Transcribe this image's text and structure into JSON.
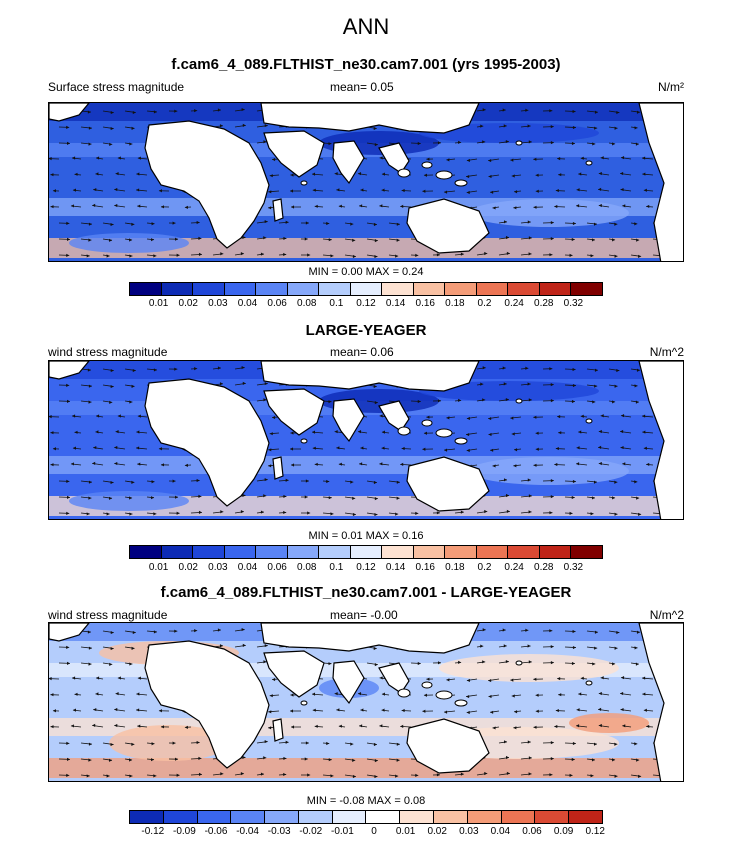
{
  "title": "ANN",
  "colors": {
    "ocean_base": "#2f5fe0",
    "land": "#ffffff",
    "coast": "#000000",
    "arrow": "#111111"
  },
  "colorbar_colors_abs": [
    "#000080",
    "#0d2bb5",
    "#1f46d8",
    "#3a66ee",
    "#5a84f5",
    "#86a8fa",
    "#b4cdfc",
    "#e5eefe",
    "#fde2d2",
    "#f9c1a3",
    "#f49c78",
    "#ec7554",
    "#da4a34",
    "#bf2418",
    "#800000"
  ],
  "colorbar_colors_diff": [
    "#0d2bb5",
    "#1f46d8",
    "#3a66ee",
    "#5a84f5",
    "#86a8fa",
    "#b4cdfc",
    "#e5eefe",
    "#ffffff",
    "#fde2d2",
    "#f9c1a3",
    "#f49c78",
    "#ec7554",
    "#da4a34",
    "#bf2418"
  ],
  "chart_data": [
    {
      "type": "heatmap",
      "title": "f.cam6_4_089.FLTHIST_ne30.cam7.001 (yrs 1995-2003)",
      "left_label": "Surface stress magnitude",
      "mean_label": "mean=   0.05",
      "units": "N/m²",
      "minmax": "MIN =   0.00 MAX =   0.24",
      "min": 0.0,
      "max": 0.24,
      "mean": 0.05,
      "levels": [
        "0.01",
        "0.02",
        "0.03",
        "0.04",
        "0.06",
        "0.08",
        "0.1",
        "0.12",
        "0.14",
        "0.16",
        "0.18",
        "0.2",
        "0.24",
        "0.28",
        "0.32"
      ],
      "field_fill": "#2f5fe0",
      "band_fills": [
        "#0d2bb5",
        "#5a84f5",
        "#86a8fa",
        "#f9c1a3"
      ]
    },
    {
      "type": "heatmap",
      "title": "LARGE-YEAGER",
      "left_label": "wind stress magnitude",
      "mean_label": "mean=   0.06",
      "units": "N/m^2",
      "minmax": "MIN =   0.01 MAX =   0.16",
      "min": 0.01,
      "max": 0.16,
      "mean": 0.06,
      "levels": [
        "0.01",
        "0.02",
        "0.03",
        "0.04",
        "0.06",
        "0.08",
        "0.1",
        "0.12",
        "0.14",
        "0.16",
        "0.18",
        "0.2",
        "0.24",
        "0.28",
        "0.32"
      ],
      "field_fill": "#3a66ee",
      "band_fills": [
        "#1f46d8",
        "#5a84f5",
        "#86a8fa",
        "#fde2d2"
      ]
    },
    {
      "type": "heatmap",
      "title": "f.cam6_4_089.FLTHIST_ne30.cam7.001 - LARGE-YEAGER",
      "left_label": "wind stress magnitude",
      "mean_label": "mean=   -0.00",
      "units": "N/m^2",
      "minmax": "MIN =  -0.08 MAX =   0.08",
      "min": -0.08,
      "max": 0.08,
      "mean": 0.0,
      "levels": [
        "-0.12",
        "-0.09",
        "-0.06",
        "-0.04",
        "-0.03",
        "-0.02",
        "-0.01",
        "0",
        "0.01",
        "0.02",
        "0.03",
        "0.04",
        "0.06",
        "0.09",
        "0.12"
      ],
      "field_fill": "#b4cdfc",
      "band_fills": [
        "#5a84f5",
        "#e5eefe",
        "#fde2d2",
        "#f49c78"
      ]
    }
  ]
}
